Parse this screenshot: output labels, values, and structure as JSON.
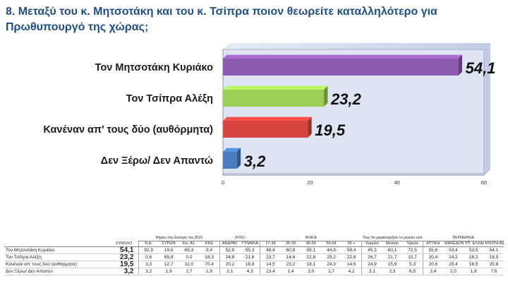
{
  "title": "8. Μεταξύ του κ. Μητσοτάκη και του κ. Τσίπρα ποιον θεωρείτε καταλληλότερο για Πρωθυπουργό της χώρας;",
  "chart_data": {
    "type": "bar",
    "orientation": "horizontal",
    "categories": [
      "Τον Μητσοτάκη Κυριάκο",
      "Τον Τσίπρα Αλέξη",
      "Κανέναν απ' τους δύο (αυθόρμητα)",
      "Δεν Ξέρω/ Δεν Απαντώ"
    ],
    "values": [
      54.1,
      23.2,
      19.5,
      3.2
    ],
    "value_labels": [
      "54,1",
      "23,2",
      "19,5",
      "3,2"
    ],
    "xlim": [
      0,
      60
    ],
    "xticks": [
      "0",
      "20",
      "40",
      "60"
    ],
    "xtick_values": [
      0,
      20,
      40,
      60
    ],
    "colors": [
      "#8e5bb0",
      "#9ccf55",
      "#d9443f",
      "#4a7cc0"
    ],
    "grid": false
  },
  "table": {
    "total_header": "ΣΥΝΟΛΟ",
    "groups": [
      {
        "label": "Ψήφος στις Εκλογές του 2019",
        "span": 4
      },
      {
        "label": "ΦΥΛΟ",
        "span": 2
      },
      {
        "label": "ΗΛΙΚΙΑ",
        "span": 5
      },
      {
        "label": "Πως θα χαρακτηρίζατε το μηνιαίο εισόδημά σας;",
        "span": 3
      },
      {
        "label": "ΠΕΡΙΦΕΡΕΙΑ",
        "span": 4
      }
    ],
    "columns": [
      "Ν.Δ.",
      "ΣΥΡΙΖΑ",
      "Κιν. Αλ.",
      "ΚΚΕ",
      "ΑΝΔΡΑΣ",
      "ΓΥΝΑΙΚΑ",
      "17-34",
      "35-39",
      "40-54",
      "55-64",
      "65 +",
      "Χαμηλό",
      "Μεσαίο",
      "Υψηλό",
      "ΑΤΤΙΚΗ",
      "ΜΑΚΕΔΟΝΙΑ",
      "ΥΠ. ΕΛΛΑΔΑ",
      "ΚΡΗΤΗ ΑΙΓΑΙΟ"
    ],
    "rows": [
      {
        "label": "Τον Μητσοτάκη Κυριάκο",
        "total": "54,1",
        "cells": [
          "92,9",
          "19,6",
          "65,3",
          "9,4",
          "52,9",
          "55,3",
          "48,4",
          "60,8",
          "56,1",
          "44,8",
          "58,4",
          "45,3",
          "60,1",
          "72,5",
          "55,6",
          "53,4",
          "53,5",
          "54,1"
        ]
      },
      {
        "label": "Τον Τσίπρα Αλέξη",
        "total": "23,2",
        "cells": [
          "0,6",
          "65,8",
          "0,0",
          "18,3",
          "24,8",
          "21,6",
          "23,7",
          "14,6",
          "22,8",
          "29,2",
          "22,8",
          "26,7",
          "21,7",
          "15,7",
          "20,4",
          "24,2",
          "28,2",
          "18,5"
        ]
      },
      {
        "label": "Κανέναν απ' τους δύο (αυθόρμητα)",
        "total": "19,5",
        "cells": [
          "3,3",
          "12,7",
          "32,0",
          "70,4",
          "20,2",
          "18,8",
          "14,5",
          "23,2",
          "18,1",
          "24,3",
          "14,6",
          "24,9",
          "15,9",
          "5,3",
          "20,6",
          "20,4",
          "16,5",
          "20,8"
        ]
      },
      {
        "label": "Δεν Ξέρω/ Δεν Απαντώ",
        "total": "3,2",
        "cells": [
          "3,2",
          "1,9",
          "2,7",
          "1,9",
          "2,1",
          "4,3",
          "13,4",
          "1,4",
          "3,0",
          "1,7",
          "4,2",
          "3,1",
          "2,3",
          "6,5",
          "3,4",
          "2,0",
          "1,8",
          "7,6"
        ]
      }
    ]
  }
}
